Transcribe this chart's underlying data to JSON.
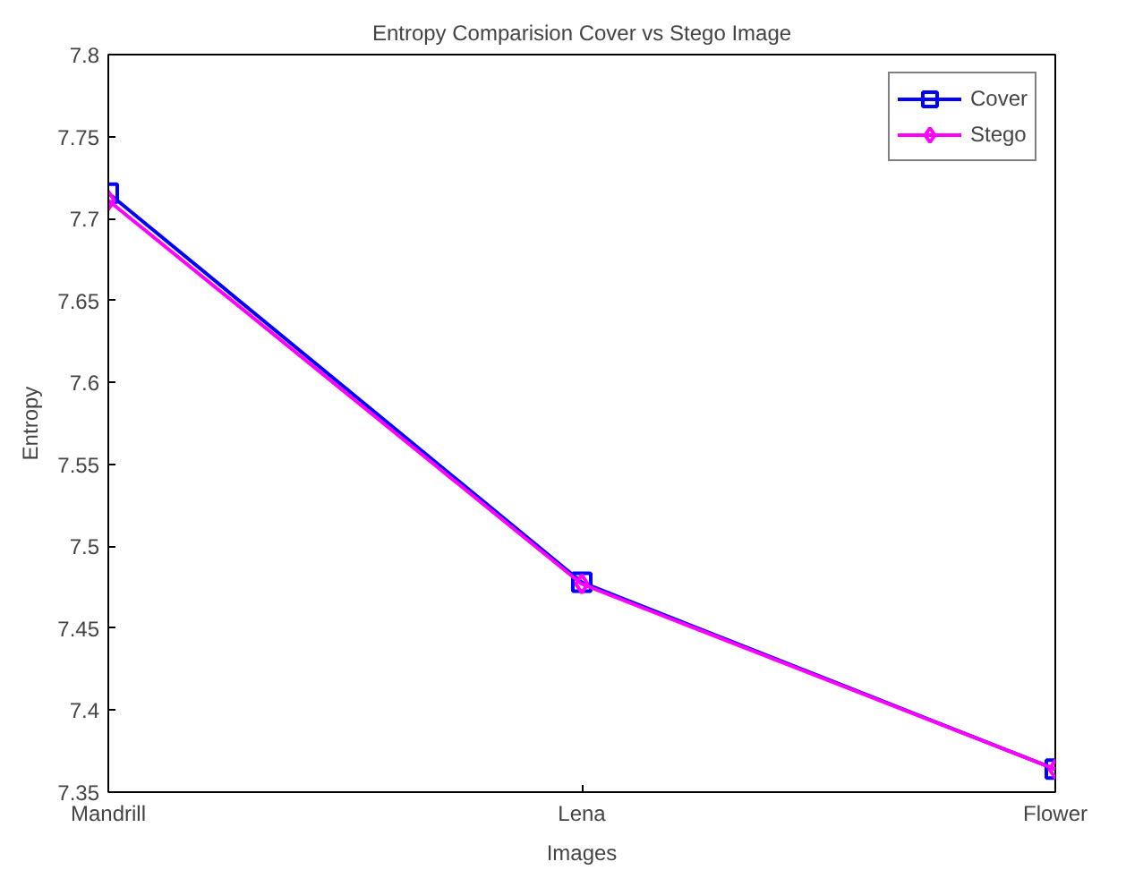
{
  "chart_data": {
    "type": "line",
    "title": "Entropy Comparision Cover vs Stego Image",
    "xlabel": "Images",
    "ylabel": "Entropy",
    "categories": [
      "Mandrill",
      "Lena",
      "Flower"
    ],
    "series": [
      {
        "name": "Cover",
        "color": "#0000ff",
        "values": [
          7.7155,
          7.478,
          7.364
        ],
        "marker": "square"
      },
      {
        "name": "Stego",
        "color": "#ff00ff",
        "values": [
          7.711,
          7.477,
          7.364
        ],
        "marker": "diamond"
      }
    ],
    "ylim": [
      7.35,
      7.8
    ],
    "yticks": [
      7.35,
      7.4,
      7.45,
      7.5,
      7.55,
      7.6,
      7.65,
      7.7,
      7.75,
      7.8
    ],
    "grid": false,
    "legend": "top right",
    "line_style": "solid"
  }
}
